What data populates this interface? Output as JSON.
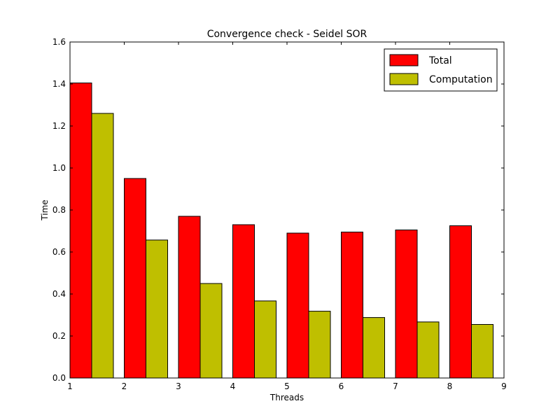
{
  "chart_data": {
    "type": "bar",
    "title": "Convergence check - Seidel SOR",
    "xlabel": "Threads",
    "ylabel": "Time",
    "categories": [
      1,
      2,
      3,
      4,
      5,
      6,
      7,
      8
    ],
    "series": [
      {
        "name": "Total",
        "color": "#ff0000",
        "values": [
          1.405,
          0.95,
          0.77,
          0.73,
          0.69,
          0.695,
          0.705,
          0.725
        ]
      },
      {
        "name": "Computation",
        "color": "#bfbf00",
        "values": [
          1.26,
          0.657,
          0.45,
          0.367,
          0.318,
          0.288,
          0.267,
          0.255
        ]
      }
    ],
    "xlim": [
      1,
      9
    ],
    "ylim": [
      0,
      1.6
    ],
    "xticks": [
      "1",
      "2",
      "3",
      "4",
      "5",
      "6",
      "7",
      "8",
      "9"
    ],
    "yticks": [
      "0.0",
      "0.2",
      "0.4",
      "0.6",
      "0.8",
      "1.0",
      "1.2",
      "1.4",
      "1.6"
    ],
    "legend": "top-right",
    "grid": false
  }
}
